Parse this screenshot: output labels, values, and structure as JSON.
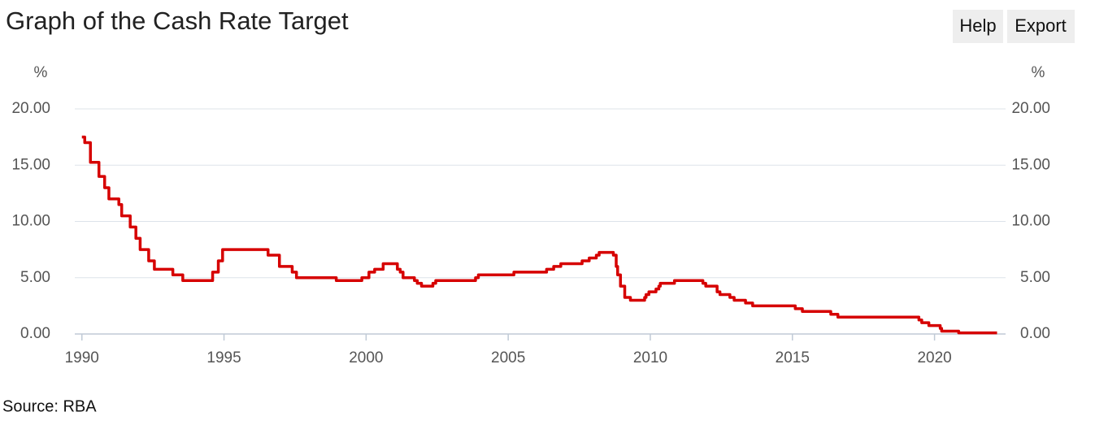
{
  "title": "Graph of the Cash Rate Target",
  "buttons": [
    "Help",
    "Export"
  ],
  "source": "Source: RBA",
  "chart_data": {
    "type": "line",
    "step": "after",
    "y_label": "%",
    "y2_label": "%",
    "xlim": [
      1989.75,
      2022.5
    ],
    "xticks": [
      1990,
      1995,
      2000,
      2005,
      2010,
      2015,
      2020
    ],
    "ylim": [
      0,
      20
    ],
    "yticks": [
      {
        "value": 0,
        "label": "0.00"
      },
      {
        "value": 5,
        "label": "5.00"
      },
      {
        "value": 10,
        "label": "10.00"
      },
      {
        "value": 15,
        "label": "15.00"
      },
      {
        "value": 20,
        "label": "20.00"
      }
    ],
    "grid": true,
    "series": [
      {
        "name": "Cash Rate Target",
        "color": "#d60000",
        "x": [
          1990.0,
          1990.1,
          1990.3,
          1990.6,
          1990.8,
          1990.95,
          1991.3,
          1991.4,
          1991.7,
          1991.9,
          1992.05,
          1992.35,
          1992.55,
          1993.2,
          1993.55,
          1994.6,
          1994.8,
          1994.95,
          1996.55,
          1996.95,
          1997.4,
          1997.55,
          1998.95,
          1999.85,
          2000.1,
          2000.3,
          2000.6,
          2001.1,
          2001.2,
          2001.3,
          2001.7,
          2001.8,
          2001.95,
          2002.35,
          2002.45,
          2003.85,
          2003.95,
          2005.2,
          2006.35,
          2006.6,
          2006.85,
          2007.6,
          2007.85,
          2008.1,
          2008.2,
          2008.7,
          2008.8,
          2008.85,
          2008.95,
          2009.1,
          2009.3,
          2009.8,
          2009.85,
          2009.95,
          2010.2,
          2010.3,
          2010.35,
          2010.85,
          2011.85,
          2011.95,
          2012.35,
          2012.45,
          2012.8,
          2012.95,
          2013.35,
          2013.6,
          2015.1,
          2015.35,
          2016.35,
          2016.6,
          2019.45,
          2019.55,
          2019.8,
          2020.2,
          2020.25,
          2020.85,
          2022.2
        ],
        "values": [
          17.5,
          17,
          15.25,
          14,
          13,
          12,
          11.5,
          10.5,
          9.5,
          8.5,
          7.5,
          6.5,
          5.75,
          5.25,
          4.75,
          5.5,
          6.5,
          7.5,
          7,
          6,
          5.5,
          5,
          4.75,
          5,
          5.5,
          5.75,
          6.25,
          5.75,
          5.5,
          5,
          4.75,
          4.5,
          4.25,
          4.5,
          4.75,
          5,
          5.25,
          5.5,
          5.75,
          6,
          6.25,
          6.5,
          6.75,
          7,
          7.25,
          7,
          6,
          5.25,
          4.25,
          3.25,
          3,
          3.25,
          3.5,
          3.75,
          4,
          4.25,
          4.5,
          4.75,
          4.5,
          4.25,
          3.75,
          3.5,
          3.25,
          3,
          2.75,
          2.5,
          2.25,
          2,
          1.75,
          1.5,
          1.25,
          1,
          0.75,
          0.5,
          0.25,
          0.1,
          0.1
        ]
      }
    ]
  }
}
